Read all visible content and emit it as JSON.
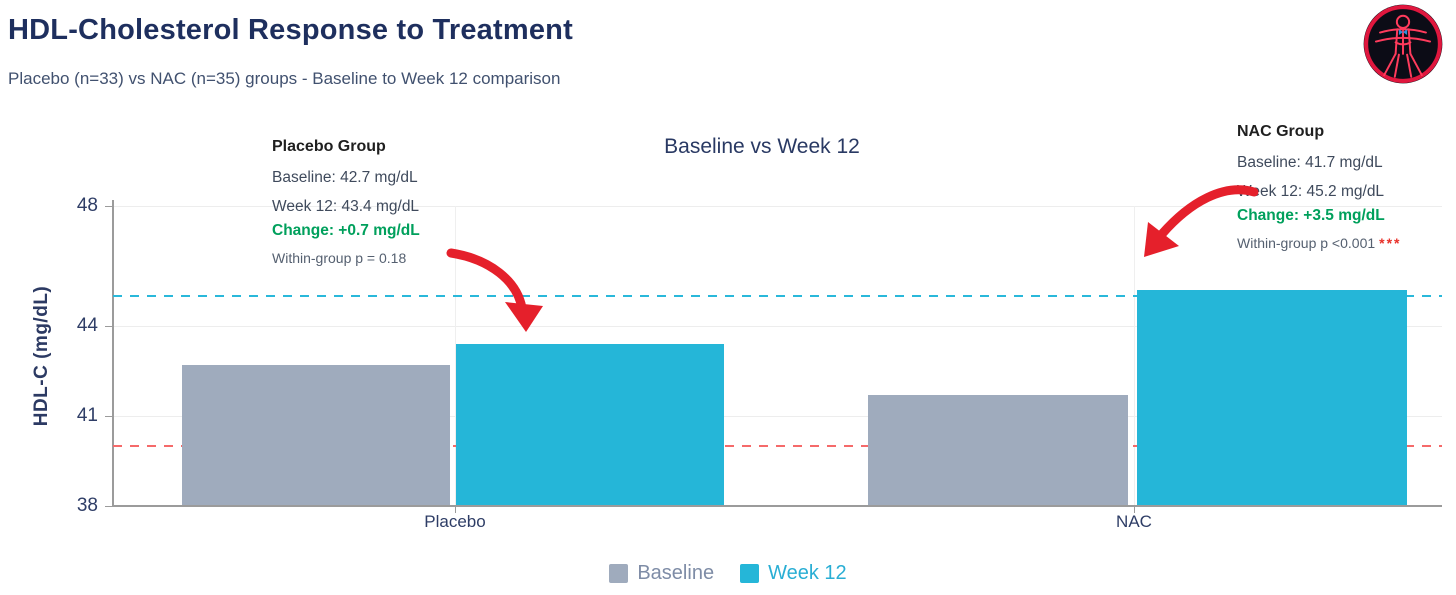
{
  "header": {
    "title": "HDL-Cholesterol Response to Treatment",
    "subtitle": "Placebo (n=33) vs NAC (n=35) groups - Baseline to Week 12 comparison"
  },
  "logo": {
    "icon": "vitruvian-man-icon"
  },
  "annotations": {
    "placebo": {
      "title": "Placebo Group",
      "baseline": "Baseline: 42.7 mg/dL",
      "week12": "Week 12: 43.4 mg/dL",
      "change": "Change: +0.7 mg/dL",
      "p_value": "Within-group p = 0.18",
      "significance": ""
    },
    "nac": {
      "title": "NAC Group",
      "baseline": "Baseline: 41.7 mg/dL",
      "week12": "Week 12: 45.2 mg/dL",
      "change": "Change: +3.5 mg/dL",
      "p_value": "Within-group p <0.001",
      "significance": "***"
    }
  },
  "chart_data": {
    "type": "bar",
    "title": "Baseline vs Week 12",
    "categories": [
      "Placebo",
      "NAC"
    ],
    "series": [
      {
        "name": "Baseline",
        "values": [
          42.7,
          41.7
        ],
        "color": "#9fabbd",
        "legend_text_color": "#7e8ca6"
      },
      {
        "name": "Week 12",
        "values": [
          43.4,
          45.2
        ],
        "color": "#25b6d8",
        "legend_text_color": "#29aed4"
      }
    ],
    "ylabel": "HDL-C (mg/dL)",
    "ylim": [
      38,
      48
    ],
    "yticks": [
      38,
      41,
      44,
      48
    ],
    "reference_lines": [
      {
        "value": 40,
        "color": "#f56a6a",
        "style": "dashed"
      },
      {
        "value": 45,
        "color": "#2ab8da",
        "style": "dashed"
      }
    ],
    "grid": true,
    "legend_position": "bottom"
  }
}
